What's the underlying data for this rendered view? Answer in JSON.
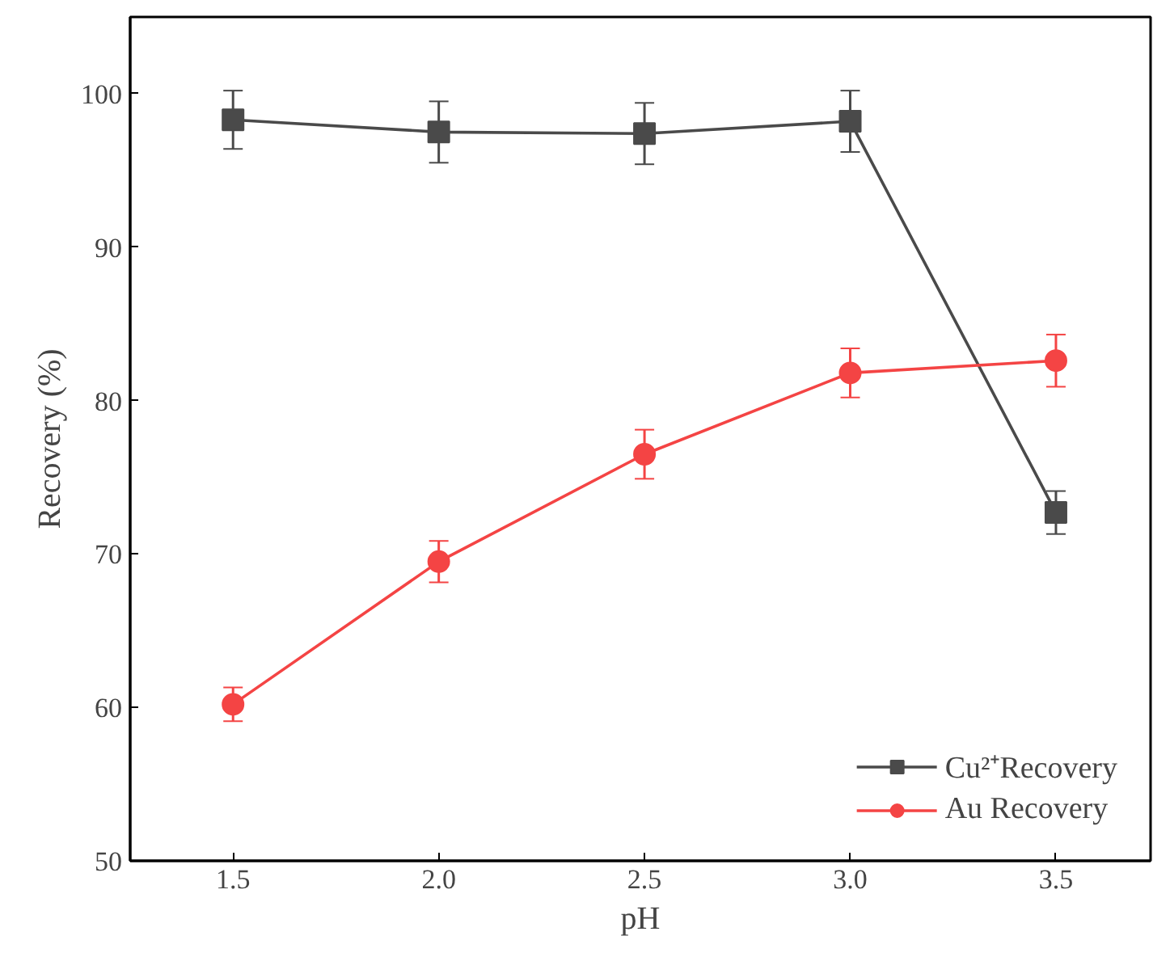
{
  "chart_data": {
    "type": "line",
    "xlabel": "pH",
    "ylabel": "Recovery (%)",
    "x": [
      1.5,
      2.0,
      2.5,
      3.0,
      3.5
    ],
    "series": [
      {
        "name": "Cu²⁺Recovery",
        "color": "#4a4a4a",
        "marker": "square",
        "values": [
          98.3,
          97.5,
          97.4,
          98.2,
          72.7
        ],
        "errors": [
          1.9,
          2.0,
          2.0,
          2.0,
          1.4
        ]
      },
      {
        "name": "Au Recovery",
        "color": "#f44444",
        "marker": "circle",
        "values": [
          60.2,
          69.5,
          76.5,
          81.8,
          82.6
        ],
        "errors": [
          1.1,
          1.35,
          1.6,
          1.6,
          1.7
        ]
      }
    ],
    "xlim": [
      1.25,
      3.73
    ],
    "xticks": [
      1.5,
      {
        "value": 2,
        "label": "2.0"
      },
      2.5,
      {
        "value": 3,
        "label": "3.0"
      },
      3.5
    ],
    "ylim": [
      50,
      105
    ],
    "yticks": [
      50,
      60,
      70,
      80,
      90,
      100
    ],
    "grid": false,
    "legend": "bottom right",
    "line_style": "solid"
  }
}
